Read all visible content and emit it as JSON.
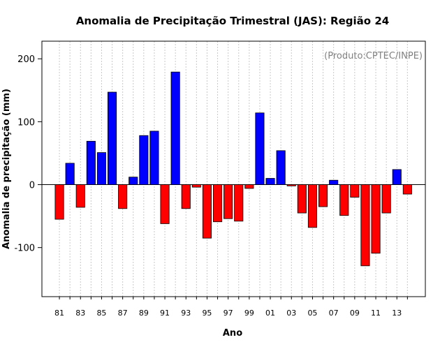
{
  "chart_data": {
    "type": "bar",
    "title": "Anomalia de Precipitação Trimestral (JAS): Região 24",
    "xlabel": "Ano",
    "ylabel": "Anomalia de precipitação (mm)",
    "annotation": "(Produto:CPTEC/INPE)",
    "ylim": [
      -178,
      228
    ],
    "yticks": [
      -100,
      0,
      100,
      200
    ],
    "x": [
      "81",
      "82",
      "83",
      "84",
      "85",
      "86",
      "87",
      "88",
      "89",
      "90",
      "91",
      "92",
      "93",
      "94",
      "95",
      "96",
      "97",
      "98",
      "99",
      "00",
      "01",
      "02",
      "03",
      "04",
      "05",
      "06",
      "07",
      "08",
      "09",
      "10",
      "11",
      "12",
      "13",
      "14"
    ],
    "xtick_labels": [
      "81",
      "83",
      "85",
      "87",
      "89",
      "91",
      "93",
      "95",
      "97",
      "99",
      "01",
      "03",
      "05",
      "07",
      "09",
      "11",
      "13"
    ],
    "values": [
      -55,
      34,
      -36,
      69,
      51,
      147,
      -38,
      12,
      78,
      85,
      -62,
      179,
      -38,
      -4,
      -85,
      -59,
      -54,
      -58,
      -6,
      114,
      10,
      54,
      -2,
      -45,
      -68,
      -35,
      7,
      -49,
      -20,
      -129,
      -109,
      -45,
      24,
      -15
    ],
    "colors": {
      "positive": "#0000ff",
      "negative": "#ff0000",
      "grid": "#c8c8c8"
    },
    "grid": true
  }
}
